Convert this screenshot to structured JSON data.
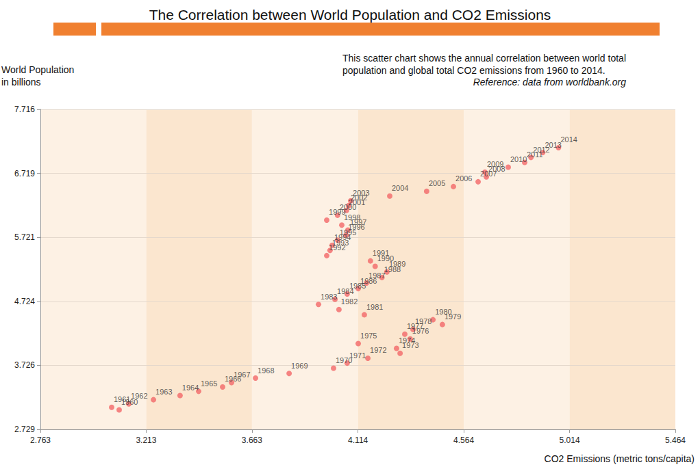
{
  "chart_data": {
    "type": "scatter",
    "title": "The Correlation between World Population and CO2 Emissions",
    "annotation": [
      "This scatter chart shows the annual correlation between world total",
      "population and global total CO2 emissions from 1960 to 2014."
    ],
    "source": "Reference: data from worldbank.org",
    "xlabel": "CO2 Emissions (metric tons/capita)",
    "ylabel": [
      "World Population",
      "in billions"
    ],
    "x": [
      3.098,
      3.066,
      3.139,
      3.244,
      3.357,
      3.436,
      3.538,
      3.576,
      3.678,
      3.821,
      4.01,
      4.068,
      4.156,
      4.293,
      4.278,
      4.115,
      4.336,
      4.313,
      4.348,
      4.473,
      4.433,
      4.141,
      4.033,
      3.946,
      4.016,
      4.068,
      4.115,
      4.15,
      4.216,
      4.237,
      4.187,
      4.167,
      3.981,
      3.995,
      4.004,
      4.027,
      4.063,
      4.071,
      4.045,
      3.981,
      4.027,
      4.065,
      4.074,
      4.083,
      4.249,
      4.406,
      4.52,
      4.625,
      4.66,
      4.654,
      4.753,
      4.823,
      4.85,
      4.9,
      4.967
    ],
    "values": [
      3.032,
      3.073,
      3.126,
      3.191,
      3.256,
      3.322,
      3.39,
      3.458,
      3.528,
      3.601,
      3.682,
      3.761,
      3.838,
      3.915,
      3.991,
      4.066,
      4.139,
      4.212,
      4.286,
      4.363,
      4.438,
      4.515,
      4.596,
      4.677,
      4.757,
      4.839,
      4.923,
      5.009,
      5.096,
      5.182,
      5.27,
      5.354,
      5.437,
      5.518,
      5.598,
      5.678,
      5.757,
      5.835,
      5.913,
      5.99,
      6.066,
      6.142,
      6.217,
      6.291,
      6.365,
      6.439,
      6.513,
      6.588,
      6.663,
      6.739,
      6.815,
      6.89,
      6.967,
      7.043,
      7.12
    ],
    "point_labels": [
      1960,
      1961,
      1962,
      1963,
      1964,
      1965,
      1966,
      1967,
      1968,
      1969,
      1970,
      1971,
      1972,
      1973,
      1974,
      1975,
      1976,
      1977,
      1978,
      1979,
      1980,
      1981,
      1982,
      1983,
      1984,
      1985,
      1986,
      1987,
      1988,
      1989,
      1990,
      1991,
      1992,
      1993,
      1994,
      1995,
      1996,
      1997,
      1998,
      1999,
      2000,
      2001,
      2002,
      2003,
      2004,
      2005,
      2006,
      2007,
      2008,
      2009,
      2010,
      2011,
      2012,
      2013,
      2014
    ],
    "color": "#f26868",
    "marker": "circle",
    "xlim": [
      2.763,
      5.464
    ],
    "xticks": [
      2.763,
      3.213,
      3.663,
      4.114,
      4.564,
      5.014,
      5.464
    ],
    "ylim": [
      2.729,
      7.716
    ],
    "yticks": [
      2.729,
      3.726,
      4.724,
      5.721,
      6.719,
      7.716
    ],
    "grid": true
  }
}
